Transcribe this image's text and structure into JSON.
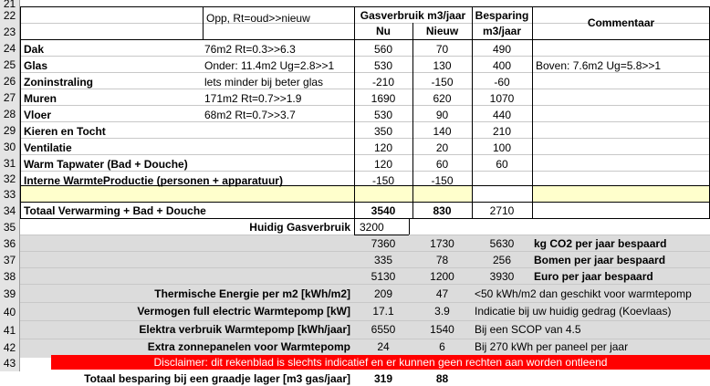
{
  "header": {
    "opp": "Opp, Rt=oud>>nieuw",
    "gas_title": "Gasverbruik m3/jaar",
    "nu": "Nu",
    "nieuw": "Nieuw",
    "besparing": "Besparing",
    "besparing_unit": "m3/jaar",
    "commentaar": "Commentaar"
  },
  "row_numbers": [
    "21",
    "22",
    "23",
    "24",
    "25",
    "26",
    "27",
    "28",
    "29",
    "30",
    "31",
    "32",
    "33",
    "34",
    "35",
    "36",
    "37",
    "38",
    "39",
    "40",
    "41",
    "42",
    "43"
  ],
  "rows": [
    {
      "label": "Dak",
      "opp": "76m2  Rt=0.3>>6.3",
      "nu": "560",
      "nieuw": "70",
      "besparing": "490",
      "commentaar": ""
    },
    {
      "label": "Glas",
      "opp": "Onder: 11.4m2  Ug=2.8>>1",
      "nu": "530",
      "nieuw": "130",
      "besparing": "400",
      "commentaar": "Boven: 7.6m2  Ug=5.8>>1"
    },
    {
      "label": "Zoninstraling",
      "opp": "lets minder bij beter glas",
      "nu": "-210",
      "nieuw": "-150",
      "besparing": "-60",
      "commentaar": ""
    },
    {
      "label": "Muren",
      "opp": "171m2  Rt=0.7>>1.9",
      "nu": "1690",
      "nieuw": "620",
      "besparing": "1070",
      "commentaar": ""
    },
    {
      "label": "Vloer",
      "opp": "68m2  Rt=0.7>>3.7",
      "nu": "530",
      "nieuw": "90",
      "besparing": "440",
      "commentaar": ""
    },
    {
      "label": "Kieren en Tocht",
      "opp": "",
      "nu": "350",
      "nieuw": "140",
      "besparing": "210",
      "commentaar": ""
    },
    {
      "label": "Ventilatie",
      "opp": "",
      "nu": "120",
      "nieuw": "20",
      "besparing": "100",
      "commentaar": ""
    },
    {
      "label": "Warm Tapwater (Bad + Douche)",
      "opp": "",
      "nu": "120",
      "nieuw": "60",
      "besparing": "60",
      "commentaar": ""
    },
    {
      "label": "Interne WarmteProductie (personen + apparatuur)",
      "opp": "",
      "nu": "-150",
      "nieuw": "-150",
      "besparing": "",
      "commentaar": ""
    }
  ],
  "totaal": {
    "label": "Totaal Verwarming + Bad + Douche",
    "nu": "3540",
    "nieuw": "830",
    "besparing": "2710"
  },
  "huidig": {
    "label": "Huidig Gasverbruik",
    "value": "3200"
  },
  "co2": {
    "nu": "7360",
    "nieuw": "1730",
    "besparing": "5630",
    "label": "kg CO2 per jaar bespaard"
  },
  "bomen": {
    "nu": "335",
    "nieuw": "78",
    "besparing": "256",
    "label": "Bomen per jaar bespaard"
  },
  "euro": {
    "nu": "5130",
    "nieuw": "1200",
    "besparing": "3930",
    "label": "Euro per jaar  bespaard"
  },
  "thermisch": {
    "label": "Thermische Energie per m2 [kWh/m2]",
    "nu": "209",
    "nieuw": "47",
    "comment": "<50 kWh/m2 dan geschikt voor warmtepomp"
  },
  "vermogen": {
    "label": "Vermogen full electric Warmtepomp [kW]",
    "nu": "17.1",
    "nieuw": "3.9",
    "comment": "Indicatie bij uw huidig gedrag (Koevlaas)"
  },
  "elektra": {
    "label": "Elektra verbruik Warmtepomp [kWh/jaar]",
    "nu": "6550",
    "nieuw": "1540",
    "comment": "Bij een SCOP van 4.5"
  },
  "zonnepanelen": {
    "label": "Extra zonnepanelen voor Warmtepomp",
    "nu": "24",
    "nieuw": "6",
    "comment": "Bij  270 kWh per paneel per jaar"
  },
  "disclaimer": "Disclaimer: dit rekenblad is slechts indicatief en er kunnen geen rechten aan worden ontleend",
  "graadje": {
    "label": "Totaal besparing bij een graadje lager [m3 gas/jaar]",
    "nu": "319",
    "nieuw": "88"
  },
  "colors": {
    "yellow_row": "#ffffcc",
    "header_grey": "#e4e4e4",
    "disclaimer_red": "#ff0000",
    "highlight_grey": "#d9d9d9"
  }
}
